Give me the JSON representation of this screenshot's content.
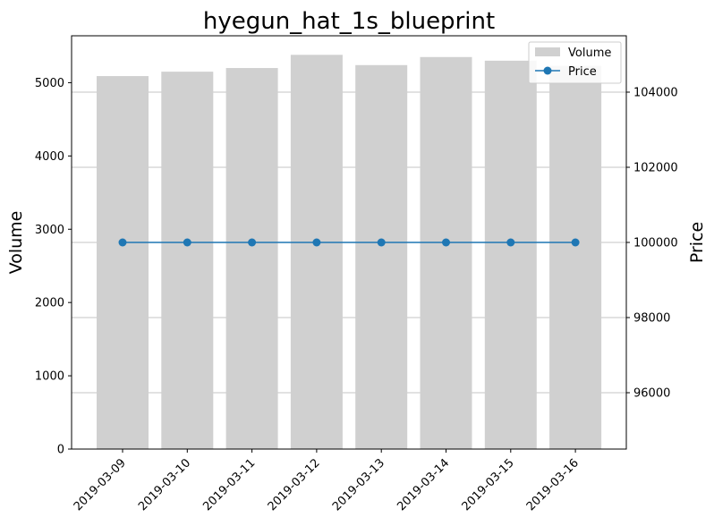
{
  "chart_data": {
    "type": "bar",
    "title": "hyegun_hat_1s_blueprint",
    "xlabel": "",
    "ylabel_left": "Volume",
    "ylabel_right": "Price",
    "categories": [
      "2019-03-09",
      "2019-03-10",
      "2019-03-11",
      "2019-03-12",
      "2019-03-13",
      "2019-03-14",
      "2019-03-15",
      "2019-03-16"
    ],
    "series": [
      {
        "name": "Volume",
        "type": "bar",
        "axis": "left",
        "color": "#d0d0d0",
        "values": [
          5090,
          5150,
          5200,
          5380,
          5240,
          5350,
          5300,
          5230
        ]
      },
      {
        "name": "Price",
        "type": "line",
        "axis": "right",
        "color": "#1f77b4",
        "marker": "circle",
        "values": [
          100000,
          100000,
          100000,
          100000,
          100000,
          100000,
          100000,
          100000
        ]
      }
    ],
    "ylim_left": [
      0,
      5640
    ],
    "yticks_left": [
      "0",
      "1000",
      "2000",
      "3000",
      "4000",
      "5000"
    ],
    "ylim_right": [
      94500,
      105500
    ],
    "yticks_right": [
      "96000",
      "98000",
      "100000",
      "102000",
      "104000"
    ],
    "grid": "horizontal lines at right-axis ticks",
    "legend": "top-right"
  }
}
